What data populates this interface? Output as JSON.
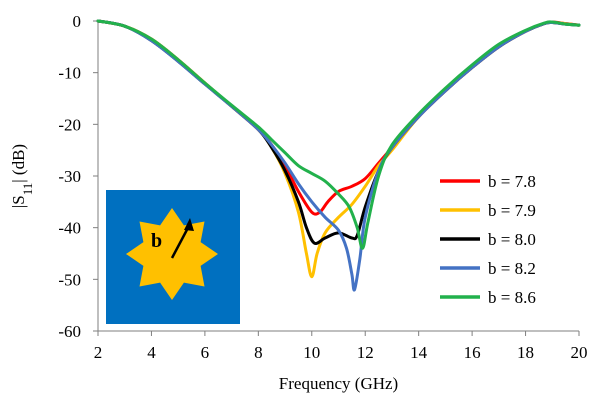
{
  "chart_data": {
    "type": "line",
    "title": "",
    "xlabel": "Frequency (GHz)",
    "ylabel": "|S11| (dB)",
    "ylabel_parts": {
      "pre": "|S",
      "sub": "11",
      "post": "| (dB)"
    },
    "xlim": [
      2,
      20
    ],
    "ylim": [
      -60,
      0
    ],
    "xticks": [
      2,
      4,
      6,
      8,
      10,
      12,
      14,
      16,
      18,
      20
    ],
    "yticks": [
      0,
      -10,
      -20,
      -30,
      -40,
      -50,
      -60
    ],
    "grid": false,
    "legend_position": "right",
    "series": [
      {
        "name": "b = 7.8",
        "color": "#ff0000",
        "points": [
          [
            2,
            0
          ],
          [
            3,
            -1
          ],
          [
            4,
            -3.5
          ],
          [
            5,
            -7.5
          ],
          [
            6,
            -12
          ],
          [
            7,
            -16.5
          ],
          [
            8,
            -21
          ],
          [
            8.5,
            -24
          ],
          [
            9,
            -28
          ],
          [
            9.5,
            -33
          ],
          [
            10,
            -37
          ],
          [
            10.3,
            -37
          ],
          [
            10.6,
            -35
          ],
          [
            11,
            -33
          ],
          [
            11.5,
            -32
          ],
          [
            12,
            -30.5
          ],
          [
            12.5,
            -27.5
          ],
          [
            13,
            -24.5
          ],
          [
            14,
            -18.5
          ],
          [
            15,
            -13.5
          ],
          [
            16,
            -9
          ],
          [
            17,
            -5
          ],
          [
            18,
            -2
          ],
          [
            18.7,
            -0.5
          ],
          [
            19,
            -0.2
          ],
          [
            19.5,
            -0.5
          ],
          [
            20,
            -0.8
          ]
        ]
      },
      {
        "name": "b = 7.9",
        "color": "#ffc000",
        "points": [
          [
            2,
            0
          ],
          [
            3,
            -1
          ],
          [
            4,
            -3.5
          ],
          [
            5,
            -7.5
          ],
          [
            6,
            -12
          ],
          [
            7,
            -16.5
          ],
          [
            8,
            -21
          ],
          [
            8.5,
            -24.5
          ],
          [
            9,
            -29.5
          ],
          [
            9.5,
            -37
          ],
          [
            9.8,
            -45
          ],
          [
            10,
            -49.5
          ],
          [
            10.2,
            -45
          ],
          [
            10.5,
            -41
          ],
          [
            11,
            -38
          ],
          [
            11.5,
            -35.5
          ],
          [
            12,
            -32
          ],
          [
            12.5,
            -28
          ],
          [
            13,
            -25
          ],
          [
            14,
            -18.5
          ],
          [
            15,
            -13.5
          ],
          [
            16,
            -9
          ],
          [
            17,
            -5
          ],
          [
            18,
            -2
          ],
          [
            18.7,
            -0.5
          ],
          [
            19,
            -0.3
          ],
          [
            19.5,
            -0.5
          ],
          [
            20,
            -0.8
          ]
        ]
      },
      {
        "name": "b = 8.0",
        "color": "#000000",
        "points": [
          [
            2,
            0
          ],
          [
            3,
            -1
          ],
          [
            4,
            -3.8
          ],
          [
            5,
            -7.8
          ],
          [
            6,
            -12.2
          ],
          [
            7,
            -16.5
          ],
          [
            8,
            -21
          ],
          [
            8.5,
            -24.5
          ],
          [
            9,
            -29
          ],
          [
            9.5,
            -35
          ],
          [
            9.8,
            -40
          ],
          [
            10.1,
            -43
          ],
          [
            10.5,
            -42
          ],
          [
            11,
            -41
          ],
          [
            11.5,
            -42
          ],
          [
            11.7,
            -41.5
          ],
          [
            12,
            -36
          ],
          [
            12.5,
            -29
          ],
          [
            13,
            -24.5
          ],
          [
            14,
            -18.5
          ],
          [
            15,
            -13.5
          ],
          [
            16,
            -9
          ],
          [
            17,
            -5
          ],
          [
            18,
            -2
          ],
          [
            18.7,
            -0.5
          ],
          [
            19,
            -0.3
          ],
          [
            19.5,
            -0.6
          ],
          [
            20,
            -0.8
          ]
        ]
      },
      {
        "name": "b = 8.2",
        "color": "#4472c4",
        "points": [
          [
            2,
            0
          ],
          [
            3,
            -1
          ],
          [
            4,
            -3.8
          ],
          [
            5,
            -7.8
          ],
          [
            6,
            -12.2
          ],
          [
            7,
            -16.5
          ],
          [
            8,
            -21
          ],
          [
            8.5,
            -24
          ],
          [
            9,
            -27.5
          ],
          [
            9.5,
            -31.5
          ],
          [
            10,
            -35
          ],
          [
            10.5,
            -38
          ],
          [
            11,
            -40.5
          ],
          [
            11.3,
            -44
          ],
          [
            11.5,
            -49
          ],
          [
            11.6,
            -52
          ],
          [
            11.8,
            -46
          ],
          [
            12,
            -38
          ],
          [
            12.5,
            -29
          ],
          [
            13,
            -24.5
          ],
          [
            14,
            -18.5
          ],
          [
            15,
            -13.5
          ],
          [
            16,
            -9
          ],
          [
            17,
            -5
          ],
          [
            18,
            -2
          ],
          [
            18.7,
            -0.5
          ],
          [
            19,
            -0.3
          ],
          [
            19.5,
            -0.6
          ],
          [
            20,
            -0.8
          ]
        ]
      },
      {
        "name": "b = 8.6",
        "color": "#22b14c",
        "points": [
          [
            2,
            0
          ],
          [
            3,
            -1
          ],
          [
            4,
            -3.5
          ],
          [
            5,
            -7.5
          ],
          [
            6,
            -12
          ],
          [
            7,
            -16.3
          ],
          [
            8,
            -20.5
          ],
          [
            8.5,
            -23
          ],
          [
            9,
            -25.5
          ],
          [
            9.5,
            -28
          ],
          [
            10,
            -29.5
          ],
          [
            10.5,
            -31
          ],
          [
            11,
            -33.5
          ],
          [
            11.4,
            -36
          ],
          [
            11.7,
            -40
          ],
          [
            11.9,
            -44
          ],
          [
            12.1,
            -39
          ],
          [
            12.5,
            -30
          ],
          [
            13,
            -24
          ],
          [
            14,
            -18
          ],
          [
            15,
            -13
          ],
          [
            16,
            -8.5
          ],
          [
            17,
            -4.5
          ],
          [
            18,
            -1.8
          ],
          [
            18.7,
            -0.4
          ],
          [
            19,
            -0.2
          ],
          [
            19.5,
            -0.6
          ],
          [
            20,
            -0.8
          ]
        ]
      }
    ]
  },
  "inset": {
    "label": "b",
    "background_color": "#0070c0",
    "star_color": "#ffc000",
    "star_points": 8,
    "icon": "eight-point-star-icon"
  }
}
